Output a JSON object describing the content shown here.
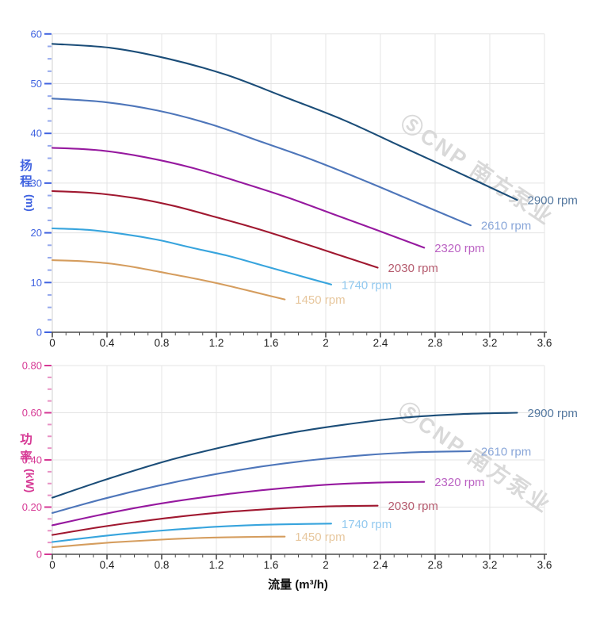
{
  "watermark": {
    "logo": "Ⓢ",
    "text": "CNP 南方泵业",
    "color": "#d9d9d9"
  },
  "x_axis": {
    "title": "流量 (m³/h)",
    "min": 0,
    "max": 3.6,
    "major_step": 0.4,
    "minor_step": 0.1,
    "tick_labels": [
      "0",
      "0.4",
      "0.8",
      "1.2",
      "1.6",
      "2",
      "2.4",
      "2.8",
      "3.2",
      "3.6"
    ],
    "label_color": "#1f1f1f",
    "line_color": "#4d4d4d"
  },
  "chart_data": [
    {
      "type": "line",
      "name": "head-curve-chart",
      "xlabel": "流量 (m³/h)",
      "ylabel": "扬程 (m)",
      "ylabel_vertical": {
        "chars": [
          "扬",
          "程"
        ],
        "unit": "(m)"
      },
      "axis_color": "#4063e0",
      "xlim": [
        0,
        3.6
      ],
      "ylim": [
        0,
        60
      ],
      "grid": true,
      "y_ticks": {
        "values": [
          0,
          10,
          20,
          30,
          40,
          50,
          60
        ],
        "labels": [
          "0",
          "10",
          "20",
          "30",
          "40",
          "50",
          "60"
        ],
        "minor_step": 2.5
      },
      "legend_position": "end-of-line",
      "series": [
        {
          "name": "2900 rpm",
          "color": "#1b4d78",
          "label_color": "#54789f",
          "points": [
            [
              0,
              58
            ],
            [
              0.43,
              57.2
            ],
            [
              0.85,
              55.0
            ],
            [
              1.28,
              51.7
            ],
            [
              1.7,
              47.3
            ],
            [
              2.13,
              42.7
            ],
            [
              2.55,
              37.4
            ],
            [
              2.98,
              32.0
            ],
            [
              3.4,
              26.6
            ]
          ]
        },
        {
          "name": "2610 rpm",
          "color": "#4e76ba",
          "label_color": "#8aa7d9",
          "points": [
            [
              0,
              47.0
            ],
            [
              0.38,
              46.3
            ],
            [
              0.77,
              44.6
            ],
            [
              1.15,
              41.9
            ],
            [
              1.53,
              38.3
            ],
            [
              1.91,
              34.6
            ],
            [
              2.3,
              30.3
            ],
            [
              2.68,
              25.9
            ],
            [
              3.06,
              21.5
            ]
          ]
        },
        {
          "name": "2320 rpm",
          "color": "#96199f",
          "label_color": "#bb63c3",
          "points": [
            [
              0,
              37.1
            ],
            [
              0.34,
              36.6
            ],
            [
              0.68,
              35.2
            ],
            [
              1.02,
              33.1
            ],
            [
              1.36,
              30.3
            ],
            [
              1.7,
              27.3
            ],
            [
              2.04,
              23.9
            ],
            [
              2.38,
              20.5
            ],
            [
              2.72,
              17.0
            ]
          ]
        },
        {
          "name": "2030 rpm",
          "color": "#a01830",
          "label_color": "#b55b6e",
          "points": [
            [
              0,
              28.4
            ],
            [
              0.3,
              28.0
            ],
            [
              0.6,
              27.0
            ],
            [
              0.89,
              25.4
            ],
            [
              1.19,
              23.2
            ],
            [
              1.49,
              20.9
            ],
            [
              1.79,
              18.3
            ],
            [
              2.08,
              15.7
            ],
            [
              2.38,
              13.0
            ]
          ]
        },
        {
          "name": "1740 rpm",
          "color": "#37a4dd",
          "label_color": "#92c9ef",
          "points": [
            [
              0,
              20.9
            ],
            [
              0.26,
              20.6
            ],
            [
              0.51,
              19.8
            ],
            [
              0.77,
              18.6
            ],
            [
              1.02,
              17.0
            ],
            [
              1.28,
              15.4
            ],
            [
              1.53,
              13.5
            ],
            [
              1.79,
              11.5
            ],
            [
              2.04,
              9.6
            ]
          ]
        },
        {
          "name": "1450 rpm",
          "color": "#d59d5e",
          "label_color": "#e7c79e",
          "points": [
            [
              0,
              14.5
            ],
            [
              0.21,
              14.3
            ],
            [
              0.43,
              13.8
            ],
            [
              0.64,
              12.9
            ],
            [
              0.85,
              11.8
            ],
            [
              1.06,
              10.7
            ],
            [
              1.28,
              9.4
            ],
            [
              1.49,
              8.0
            ],
            [
              1.7,
              6.6
            ]
          ]
        }
      ]
    },
    {
      "type": "line",
      "name": "power-curve-chart",
      "xlabel": "流量 (m³/h)",
      "ylabel": "功率 (kW)",
      "ylabel_vertical": {
        "chars": [
          "功",
          "率"
        ],
        "unit": "(kW)"
      },
      "axis_color": "#d63894",
      "xlim": [
        0,
        3.6
      ],
      "ylim": [
        0,
        0.8
      ],
      "grid": true,
      "y_ticks": {
        "values": [
          0,
          0.2,
          0.4,
          0.6,
          0.8
        ],
        "labels": [
          "0",
          "0.20",
          "0.40",
          "0.60",
          "0.80"
        ],
        "minor_step": 0.05
      },
      "legend_position": "end-of-line",
      "series": [
        {
          "name": "2900 rpm",
          "color": "#1b4d78",
          "label_color": "#54789f",
          "points": [
            [
              0,
              0.24
            ],
            [
              0.43,
              0.324
            ],
            [
              0.85,
              0.398
            ],
            [
              1.28,
              0.459
            ],
            [
              1.7,
              0.51
            ],
            [
              2.13,
              0.549
            ],
            [
              2.55,
              0.578
            ],
            [
              2.98,
              0.594
            ],
            [
              3.4,
              0.6
            ]
          ]
        },
        {
          "name": "2610 rpm",
          "color": "#4e76ba",
          "label_color": "#8aa7d9",
          "points": [
            [
              0,
              0.175
            ],
            [
              0.38,
              0.236
            ],
            [
              0.77,
              0.29
            ],
            [
              1.15,
              0.335
            ],
            [
              1.53,
              0.372
            ],
            [
              1.91,
              0.4
            ],
            [
              2.3,
              0.421
            ],
            [
              2.68,
              0.433
            ],
            [
              3.06,
              0.437
            ]
          ]
        },
        {
          "name": "2320 rpm",
          "color": "#96199f",
          "label_color": "#bb63c3",
          "points": [
            [
              0,
              0.123
            ],
            [
              0.34,
              0.166
            ],
            [
              0.68,
              0.204
            ],
            [
              1.02,
              0.235
            ],
            [
              1.36,
              0.261
            ],
            [
              1.7,
              0.281
            ],
            [
              2.04,
              0.296
            ],
            [
              2.38,
              0.304
            ],
            [
              2.72,
              0.307
            ]
          ]
        },
        {
          "name": "2030 rpm",
          "color": "#a01830",
          "label_color": "#b55b6e",
          "points": [
            [
              0,
              0.082
            ],
            [
              0.3,
              0.111
            ],
            [
              0.6,
              0.136
            ],
            [
              0.89,
              0.157
            ],
            [
              1.19,
              0.175
            ],
            [
              1.49,
              0.188
            ],
            [
              1.79,
              0.198
            ],
            [
              2.08,
              0.204
            ],
            [
              2.38,
              0.206
            ]
          ]
        },
        {
          "name": "1740 rpm",
          "color": "#37a4dd",
          "label_color": "#92c9ef",
          "points": [
            [
              0,
              0.052
            ],
            [
              0.26,
              0.07
            ],
            [
              0.51,
              0.086
            ],
            [
              0.77,
              0.099
            ],
            [
              1.02,
              0.11
            ],
            [
              1.28,
              0.119
            ],
            [
              1.53,
              0.125
            ],
            [
              1.79,
              0.128
            ],
            [
              2.04,
              0.13
            ]
          ]
        },
        {
          "name": "1450 rpm",
          "color": "#d59d5e",
          "label_color": "#e7c79e",
          "points": [
            [
              0,
              0.03
            ],
            [
              0.21,
              0.04
            ],
            [
              0.43,
              0.05
            ],
            [
              0.64,
              0.057
            ],
            [
              0.85,
              0.064
            ],
            [
              1.06,
              0.069
            ],
            [
              1.28,
              0.072
            ],
            [
              1.49,
              0.074
            ],
            [
              1.7,
              0.075
            ]
          ]
        }
      ]
    }
  ]
}
